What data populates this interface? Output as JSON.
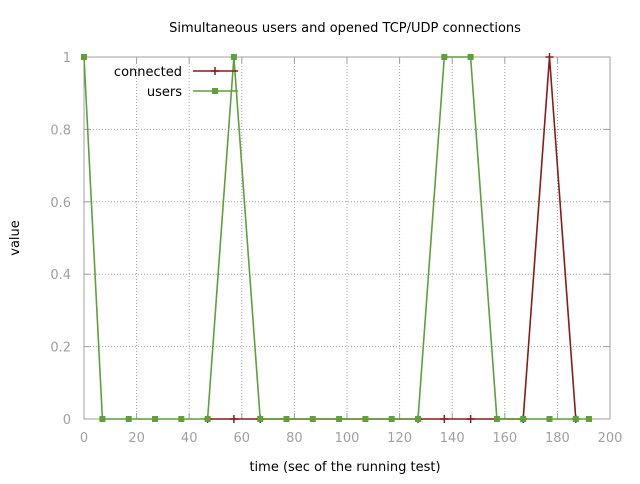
{
  "chart_data": {
    "type": "line",
    "title": "Simultaneous users and opened TCP/UDP connections",
    "xlabel": "time (sec of the running test)",
    "ylabel": "value",
    "xlim": [
      0,
      200
    ],
    "ylim": [
      0,
      1
    ],
    "xticks": [
      0,
      20,
      40,
      60,
      80,
      100,
      120,
      140,
      160,
      180,
      200
    ],
    "yticks": [
      0,
      0.2,
      0.4,
      0.6,
      0.8,
      1
    ],
    "xtick_labels": [
      "0",
      "20",
      "40",
      "60",
      "80",
      "100",
      "120",
      "140",
      "160",
      "180",
      "200"
    ],
    "ytick_labels": [
      "0",
      "0.2",
      "0.4",
      "0.6",
      "0.8",
      "1"
    ],
    "grid": true,
    "legend_position": "top-left",
    "series": [
      {
        "name": "connected",
        "color": "#8b1a1a",
        "marker": "plus",
        "x": [
          47,
          57,
          67,
          127,
          137,
          147,
          167,
          177,
          187
        ],
        "y": [
          0,
          0,
          0,
          0,
          0,
          0,
          0,
          1,
          0
        ]
      },
      {
        "name": "users",
        "color": "#5fa03a",
        "marker": "box",
        "x": [
          0,
          7,
          17,
          27,
          37,
          47,
          57,
          67,
          77,
          87,
          97,
          107,
          117,
          127,
          137,
          147,
          157,
          167,
          177,
          187,
          192
        ],
        "y": [
          1,
          0,
          0,
          0,
          0,
          0,
          1,
          0,
          0,
          0,
          0,
          0,
          0,
          0,
          1,
          1,
          0,
          0,
          0,
          0,
          0
        ]
      }
    ]
  }
}
